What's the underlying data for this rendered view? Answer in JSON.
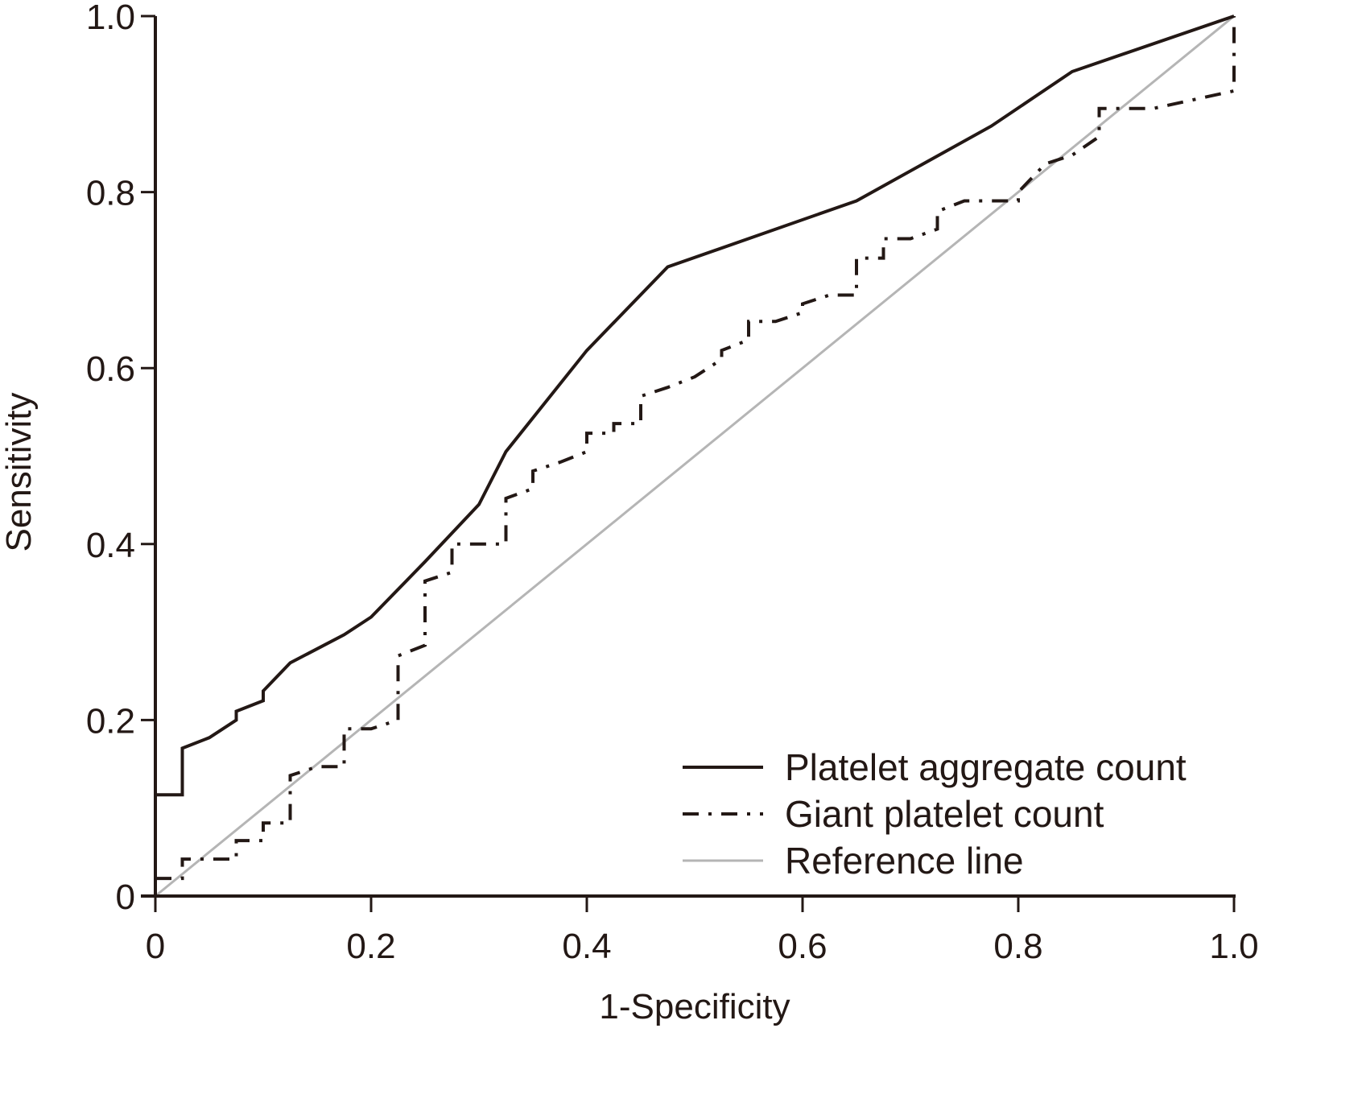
{
  "chart_data": {
    "type": "line",
    "title": "",
    "xlabel": "1-Specificity",
    "ylabel": "Sensitivity",
    "xlim": [
      0,
      1.0
    ],
    "ylim": [
      0,
      1.0
    ],
    "grid": false,
    "x_ticks": [
      0,
      0.2,
      0.4,
      0.6,
      0.8,
      1.0
    ],
    "x_tick_labels": [
      "0",
      "0.2",
      "0.4",
      "0.6",
      "0.8",
      "1.0"
    ],
    "y_ticks": [
      0,
      0.2,
      0.4,
      0.6,
      0.8,
      1.0
    ],
    "y_tick_labels": [
      "0",
      "0.2",
      "0.4",
      "0.6",
      "0.8",
      "1.0"
    ],
    "legend_position": "bottom-right",
    "series": [
      {
        "name": "Platelet aggregate count",
        "style": "solid",
        "color": "#231815",
        "points": [
          [
            0,
            0.115
          ],
          [
            0.025,
            0.115
          ],
          [
            0.025,
            0.168
          ],
          [
            0.05,
            0.18
          ],
          [
            0.075,
            0.2
          ],
          [
            0.075,
            0.21
          ],
          [
            0.1,
            0.222
          ],
          [
            0.1,
            0.233
          ],
          [
            0.125,
            0.265
          ],
          [
            0.175,
            0.297
          ],
          [
            0.2,
            0.317
          ],
          [
            0.25,
            0.38
          ],
          [
            0.3,
            0.445
          ],
          [
            0.325,
            0.505
          ],
          [
            0.4,
            0.62
          ],
          [
            0.475,
            0.715
          ],
          [
            0.65,
            0.79
          ],
          [
            0.775,
            0.875
          ],
          [
            0.85,
            0.937
          ],
          [
            1.0,
            1.0
          ]
        ]
      },
      {
        "name": "Giant platelet count",
        "style": "dash-dot",
        "color": "#231815",
        "points": [
          [
            0,
            0.02
          ],
          [
            0.025,
            0.02
          ],
          [
            0.025,
            0.042
          ],
          [
            0.075,
            0.042
          ],
          [
            0.075,
            0.063
          ],
          [
            0.1,
            0.063
          ],
          [
            0.1,
            0.083
          ],
          [
            0.125,
            0.083
          ],
          [
            0.125,
            0.137
          ],
          [
            0.15,
            0.147
          ],
          [
            0.175,
            0.147
          ],
          [
            0.175,
            0.19
          ],
          [
            0.2,
            0.19
          ],
          [
            0.225,
            0.2
          ],
          [
            0.225,
            0.273
          ],
          [
            0.25,
            0.285
          ],
          [
            0.25,
            0.358
          ],
          [
            0.275,
            0.368
          ],
          [
            0.275,
            0.4
          ],
          [
            0.325,
            0.4
          ],
          [
            0.325,
            0.452
          ],
          [
            0.35,
            0.463
          ],
          [
            0.35,
            0.483
          ],
          [
            0.375,
            0.493
          ],
          [
            0.4,
            0.505
          ],
          [
            0.4,
            0.526
          ],
          [
            0.425,
            0.526
          ],
          [
            0.425,
            0.537
          ],
          [
            0.45,
            0.537
          ],
          [
            0.45,
            0.568
          ],
          [
            0.475,
            0.578
          ],
          [
            0.5,
            0.59
          ],
          [
            0.525,
            0.61
          ],
          [
            0.525,
            0.62
          ],
          [
            0.55,
            0.632
          ],
          [
            0.55,
            0.653
          ],
          [
            0.575,
            0.653
          ],
          [
            0.6,
            0.663
          ],
          [
            0.6,
            0.673
          ],
          [
            0.625,
            0.683
          ],
          [
            0.65,
            0.683
          ],
          [
            0.65,
            0.725
          ],
          [
            0.675,
            0.725
          ],
          [
            0.675,
            0.747
          ],
          [
            0.7,
            0.747
          ],
          [
            0.725,
            0.758
          ],
          [
            0.725,
            0.778
          ],
          [
            0.75,
            0.79
          ],
          [
            0.8,
            0.79
          ],
          [
            0.8,
            0.8
          ],
          [
            0.825,
            0.832
          ],
          [
            0.85,
            0.842
          ],
          [
            0.875,
            0.863
          ],
          [
            0.875,
            0.895
          ],
          [
            0.925,
            0.895
          ],
          [
            1.0,
            0.915
          ],
          [
            1.0,
            1.0
          ]
        ]
      },
      {
        "name": "Reference line",
        "style": "solid",
        "color": "#b5b5b5",
        "points": [
          [
            0,
            0
          ],
          [
            1.0,
            1.0
          ]
        ]
      }
    ]
  }
}
